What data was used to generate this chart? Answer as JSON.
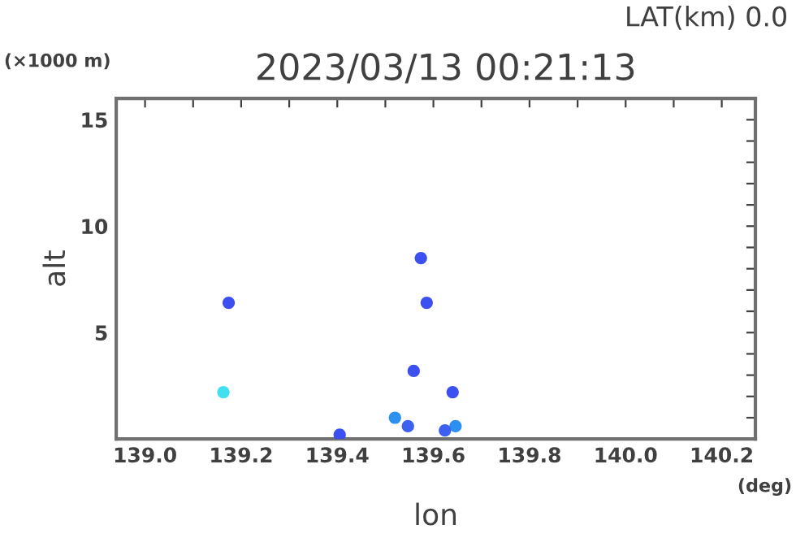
{
  "chart_data": {
    "type": "scatter",
    "title": "2023/03/13 00:21:13",
    "xlabel": "lon",
    "ylabel": "alt",
    "annotations": [
      "LAT(km) 0.0",
      "(×1000 m)",
      "(deg)"
    ],
    "x": [
      139.174,
      139.163,
      139.574,
      139.586,
      139.559,
      139.64,
      139.405,
      139.52,
      139.547,
      139.646,
      139.624
    ],
    "values": [
      6.4,
      2.2,
      8.5,
      6.4,
      3.2,
      2.2,
      0.2,
      1.0,
      0.6,
      0.6,
      0.4
    ],
    "colors": [
      "#3c50f0",
      "#40e0f0",
      "#3c50f0",
      "#3c50f0",
      "#3c50f0",
      "#3c50f0",
      "#3c50f0",
      "#2c90f0",
      "#3c60f0",
      "#2c90f0",
      "#3c60f0"
    ],
    "marker": "circle",
    "grid": false,
    "legend": false,
    "xlim": [
      138.94,
      140.27
    ],
    "ylim": [
      0,
      16
    ],
    "xticks": [
      {
        "value": 139.0,
        "label": "139.0"
      },
      {
        "value": 139.1,
        "label": null
      },
      139.2,
      {
        "value": 139.3,
        "label": null
      },
      139.4,
      {
        "value": 139.5,
        "label": null
      },
      139.6,
      {
        "value": 139.7,
        "label": null
      },
      139.8,
      {
        "value": 139.9,
        "label": null
      },
      {
        "value": 140.0,
        "label": "140.0"
      },
      {
        "value": 140.1,
        "label": null
      },
      140.2
    ],
    "yticks": [
      {
        "value": 1,
        "label": null
      },
      {
        "value": 2,
        "label": null
      },
      {
        "value": 3,
        "label": null
      },
      {
        "value": 4,
        "label": null
      },
      5,
      {
        "value": 6,
        "label": null
      },
      {
        "value": 7,
        "label": null
      },
      {
        "value": 8,
        "label": null
      },
      {
        "value": 9,
        "label": null
      },
      10,
      {
        "value": 11,
        "label": null
      },
      {
        "value": 12,
        "label": null
      },
      {
        "value": 13,
        "label": null
      },
      {
        "value": 14,
        "label": null
      },
      15,
      {
        "value": 16,
        "label": null
      }
    ]
  }
}
